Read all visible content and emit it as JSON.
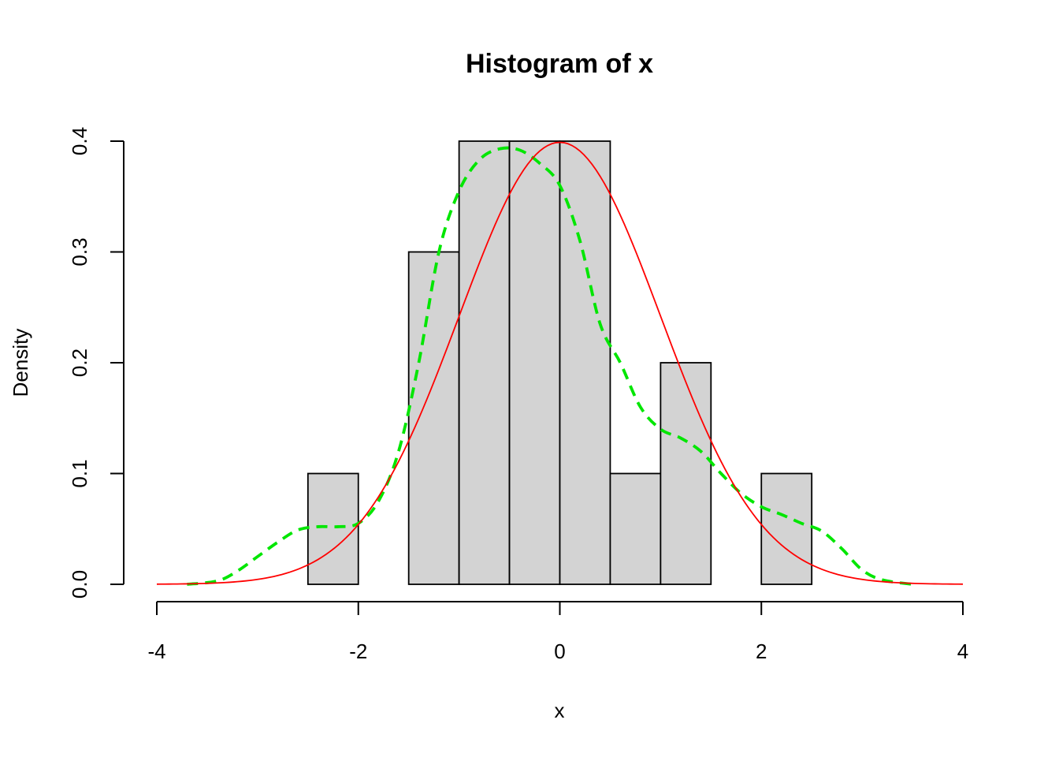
{
  "chart_data": {
    "type": "bar",
    "title": "Histogram of x",
    "xlabel": "x",
    "ylabel": "Density",
    "xlim": [
      -4,
      4
    ],
    "ylim": [
      0,
      0.4
    ],
    "x_ticks": [
      -4,
      -2,
      0,
      2,
      4
    ],
    "x_tick_labels": [
      "-4",
      "-2",
      "0",
      "2",
      "4"
    ],
    "y_ticks": [
      0,
      0.1,
      0.2,
      0.3,
      0.4
    ],
    "y_tick_labels": [
      "0.0",
      "0.1",
      "0.2",
      "0.3",
      "0.4"
    ],
    "grid": false,
    "bins": [
      {
        "x0": -2.5,
        "x1": -2.0,
        "density": 0.1
      },
      {
        "x0": -1.5,
        "x1": -1.0,
        "density": 0.3
      },
      {
        "x0": -1.0,
        "x1": -0.5,
        "density": 0.4
      },
      {
        "x0": -0.5,
        "x1": 0.0,
        "density": 0.4
      },
      {
        "x0": 0.0,
        "x1": 0.5,
        "density": 0.4
      },
      {
        "x0": 0.5,
        "x1": 1.0,
        "density": 0.1
      },
      {
        "x0": 1.0,
        "x1": 1.5,
        "density": 0.2
      },
      {
        "x0": 2.0,
        "x1": 2.5,
        "density": 0.1
      }
    ],
    "lines": [
      {
        "style": "dashed",
        "color": "#00e600",
        "x": [
          -3.7,
          -3.4,
          -3.2,
          -3.0,
          -2.8,
          -2.6,
          -2.4,
          -2.2,
          -2.0,
          -1.8,
          -1.6,
          -1.4,
          -1.2,
          -1.0,
          -0.8,
          -0.6,
          -0.4,
          -0.2,
          0.0,
          0.2,
          0.4,
          0.6,
          0.8,
          1.0,
          1.2,
          1.4,
          1.6,
          1.8,
          2.0,
          2.2,
          2.4,
          2.6,
          2.8,
          3.0,
          3.2,
          3.5
        ],
        "y": [
          0.0,
          0.003,
          0.012,
          0.025,
          0.038,
          0.049,
          0.052,
          0.052,
          0.055,
          0.075,
          0.12,
          0.2,
          0.3,
          0.355,
          0.383,
          0.393,
          0.392,
          0.38,
          0.36,
          0.31,
          0.235,
          0.2,
          0.16,
          0.14,
          0.132,
          0.12,
          0.1,
          0.082,
          0.07,
          0.063,
          0.055,
          0.048,
          0.032,
          0.013,
          0.004,
          0.0
        ]
      },
      {
        "style": "solid",
        "color": "#ff0000",
        "function": "normal_pdf",
        "mean": 0,
        "sd": 1,
        "x_range": [
          -4,
          4
        ]
      }
    ]
  }
}
